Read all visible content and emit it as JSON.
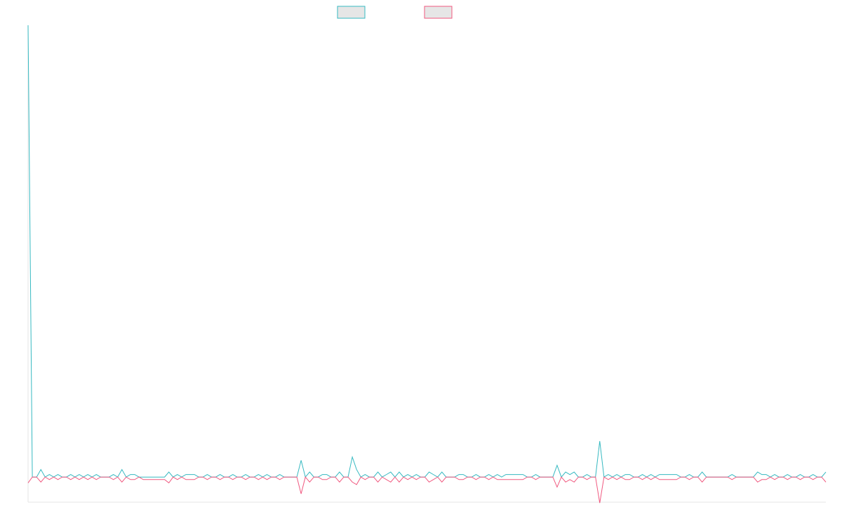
{
  "chart_data": {
    "type": "line",
    "title": "",
    "xlabel": "",
    "ylabel": "",
    "grid": false,
    "legend": {
      "placement": "top-center",
      "show_labels": false
    },
    "ylim": [
      -3,
      54
    ],
    "series": [
      {
        "name": "",
        "color": "#36b9c1",
        "fill": "#e6e6e6",
        "values": [
          54,
          0,
          0,
          0.9,
          0,
          0.3,
          0,
          0.3,
          0,
          0,
          0.3,
          0,
          0.3,
          0,
          0.3,
          0,
          0.3,
          0,
          0,
          0,
          0.3,
          0,
          0.9,
          0,
          0.3,
          0.3,
          0,
          0,
          0,
          0,
          0,
          0,
          0,
          0.6,
          0,
          0.3,
          0,
          0.3,
          0.3,
          0.3,
          0,
          0,
          0.3,
          0,
          0,
          0.3,
          0,
          0,
          0.3,
          0,
          0,
          0.3,
          0,
          0,
          0.3,
          0,
          0.3,
          0,
          0,
          0.3,
          0,
          0,
          0,
          0,
          2,
          0,
          0.6,
          0,
          0,
          0.3,
          0.3,
          0,
          0,
          0.6,
          0,
          0,
          2.4,
          0.9,
          0,
          0.3,
          0,
          0,
          0.6,
          0,
          0.3,
          0.6,
          0,
          0.6,
          0,
          0.3,
          0,
          0.3,
          0,
          0,
          0.6,
          0.3,
          0,
          0.6,
          0,
          0,
          0,
          0.3,
          0.3,
          0,
          0,
          0.3,
          0,
          0,
          0.3,
          0,
          0.3,
          0,
          0.3,
          0.3,
          0.3,
          0.3,
          0.3,
          0,
          0,
          0.3,
          0,
          0,
          0,
          0,
          1.4,
          0,
          0.6,
          0.3,
          0.6,
          0,
          0,
          0.3,
          0,
          0,
          4.3,
          0,
          0.3,
          0,
          0.3,
          0,
          0.3,
          0.3,
          0,
          0,
          0.3,
          0,
          0.3,
          0,
          0.3,
          0.3,
          0.3,
          0.3,
          0.3,
          0,
          0,
          0.3,
          0,
          0,
          0.6,
          0,
          0,
          0,
          0,
          0,
          0,
          0.3,
          0,
          0,
          0,
          0,
          0,
          0.6,
          0.3,
          0.3,
          0,
          0.3,
          0,
          0,
          0.3,
          0,
          0,
          0.3,
          0,
          0,
          0.3,
          0,
          0,
          0.6
        ]
      },
      {
        "name": "",
        "color": "#f0587f",
        "fill": "#e6e6e6",
        "values": [
          -0.7,
          0,
          0,
          -0.6,
          0,
          -0.3,
          0,
          -0.3,
          0,
          0,
          -0.3,
          0,
          -0.3,
          0,
          -0.3,
          0,
          -0.3,
          0,
          0,
          0,
          -0.3,
          0,
          -0.6,
          0,
          -0.3,
          -0.3,
          0,
          -0.3,
          -0.3,
          -0.3,
          -0.3,
          -0.3,
          -0.3,
          -0.7,
          0,
          -0.3,
          0,
          -0.3,
          -0.3,
          -0.3,
          0,
          0,
          -0.3,
          0,
          0,
          -0.3,
          0,
          0,
          -0.3,
          0,
          0,
          -0.3,
          0,
          0,
          -0.3,
          0,
          -0.3,
          0,
          0,
          -0.3,
          0,
          0,
          0,
          0,
          -2,
          0,
          -0.6,
          0,
          0,
          -0.3,
          -0.3,
          0,
          0,
          -0.6,
          0,
          0,
          -0.6,
          -0.9,
          0,
          -0.3,
          0,
          0,
          -0.6,
          0,
          -0.3,
          -0.6,
          0,
          -0.6,
          0,
          -0.3,
          0,
          -0.3,
          0,
          0,
          -0.6,
          -0.3,
          0,
          -0.6,
          0,
          0,
          0,
          -0.3,
          -0.3,
          0,
          0,
          -0.3,
          0,
          0,
          -0.3,
          0,
          -0.3,
          -0.3,
          -0.3,
          -0.3,
          -0.3,
          -0.3,
          -0.3,
          0,
          0,
          -0.3,
          0,
          0,
          0,
          0,
          -1.2,
          0,
          -0.6,
          -0.3,
          -0.6,
          0,
          0,
          -0.3,
          0,
          0,
          -3.1,
          0,
          -0.3,
          0,
          -0.3,
          0,
          -0.3,
          -0.3,
          0,
          0,
          -0.3,
          0,
          -0.3,
          0,
          -0.3,
          -0.3,
          -0.3,
          -0.3,
          -0.3,
          0,
          0,
          -0.3,
          0,
          0,
          -0.6,
          0,
          0,
          0,
          0,
          0,
          0,
          -0.3,
          0,
          0,
          0,
          0,
          0,
          -0.6,
          -0.3,
          -0.3,
          0,
          -0.3,
          0,
          0,
          -0.3,
          0,
          0,
          -0.3,
          0,
          0,
          -0.3,
          0,
          0,
          -0.6
        ]
      }
    ]
  }
}
